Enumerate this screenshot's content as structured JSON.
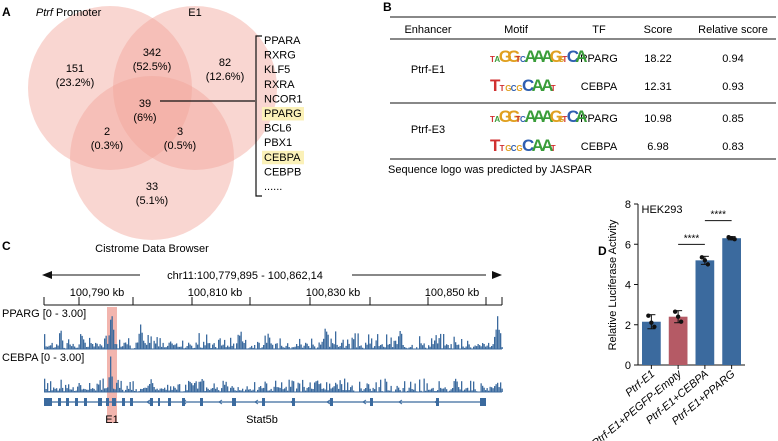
{
  "panels": {
    "a": "A",
    "b": "B",
    "c": "C",
    "d": "D"
  },
  "venn": {
    "set_labels": {
      "promoter_italic": "Ptrf",
      "promoter": "Promoter",
      "e1": "E1",
      "cistrome": "Cistrome Data Browser"
    },
    "regions": [
      {
        "id": "promoter-only",
        "count": "151",
        "percent": "(23.2%)"
      },
      {
        "id": "promoter-e1",
        "count": "342",
        "percent": "(52.5%)"
      },
      {
        "id": "e1-only",
        "count": "82",
        "percent": "(12.6%)"
      },
      {
        "id": "all-three",
        "count": "39",
        "percent": "(6%)"
      },
      {
        "id": "promoter-cistrome",
        "count": "2",
        "percent": "(0.3%)"
      },
      {
        "id": "e1-cistrome",
        "count": "3",
        "percent": "(0.5%)"
      },
      {
        "id": "cistrome-only",
        "count": "33",
        "percent": "(5.1%)"
      }
    ],
    "gene_list": [
      "PPARA",
      "RXRG",
      "KLF5",
      "RXRA",
      "NCOR1",
      "PPARG",
      "BCL6",
      "PBX1",
      "CEBPA",
      "CEBPB",
      "......"
    ],
    "highlighted_genes": [
      "PPARG",
      "CEBPA"
    ],
    "highlight_color": "#fbf1b8",
    "circle_color": "#f2a49a"
  },
  "motif_table": {
    "headers": [
      "Enhancer",
      "Motif",
      "TF",
      "Score",
      "Relative score"
    ],
    "groups": [
      {
        "enhancer": "Ptrf-E1",
        "rows": [
          {
            "tf": "PPARG",
            "score": "18.22",
            "relative": "0.94"
          },
          {
            "tf": "CEBPA",
            "score": "12.31",
            "relative": "0.93"
          }
        ]
      },
      {
        "enhancer": "Ptrf-E3",
        "rows": [
          {
            "tf": "PPARG",
            "score": "10.98",
            "relative": "0.85"
          },
          {
            "tf": "CEBPA",
            "score": "6.98",
            "relative": "0.83"
          }
        ]
      }
    ],
    "footnote": "Sequence logo was predicted by JASPAR",
    "logo_colors": {
      "A": "#3a9d3a",
      "C": "#2f5fb0",
      "G": "#e0a020",
      "T": "#d03030"
    }
  },
  "tracks": {
    "locus": "chr11:100,779,895 - 100,862,14",
    "ruler_ticks": [
      "100,790 kb",
      "100,810 kb",
      "100,830 kb",
      "100,850 kb"
    ],
    "track_labels": [
      "PPARG [0 - 3.00]",
      "CEBPA [0 - 3.00]"
    ],
    "e1_label": "E1",
    "gene_label": "Stat5b",
    "track_color": "#3b6a9e",
    "highlight_color": "#f0a8a0"
  },
  "chart_data": {
    "type": "bar",
    "title": "HEK293",
    "ylabel": "Relative Luciferase Activity",
    "xlabel": "",
    "ylim": [
      0,
      8
    ],
    "yticks": [
      "0",
      "2",
      "4",
      "6",
      "8"
    ],
    "categories": [
      "Ptrf-E1",
      "Ptrf-E1+PEGFP-Empty",
      "Ptrf-E1+CEBPA",
      "Ptrf-E1+PPARG"
    ],
    "values": [
      2.15,
      2.4,
      5.2,
      6.3
    ],
    "errors": [
      0.35,
      0.3,
      0.2,
      0.08
    ],
    "points": [
      [
        2.45,
        2.1,
        1.9
      ],
      [
        2.65,
        2.4,
        2.15
      ],
      [
        5.35,
        5.2,
        5.0
      ],
      [
        6.35,
        6.3,
        6.25
      ]
    ],
    "colors": [
      "#3b6a9e",
      "#b55a65",
      "#3b6a9e",
      "#3b6a9e"
    ],
    "significance": [
      {
        "from": 1,
        "to": 2,
        "label": "****"
      },
      {
        "from": 2,
        "to": 3,
        "label": "****"
      }
    ]
  }
}
